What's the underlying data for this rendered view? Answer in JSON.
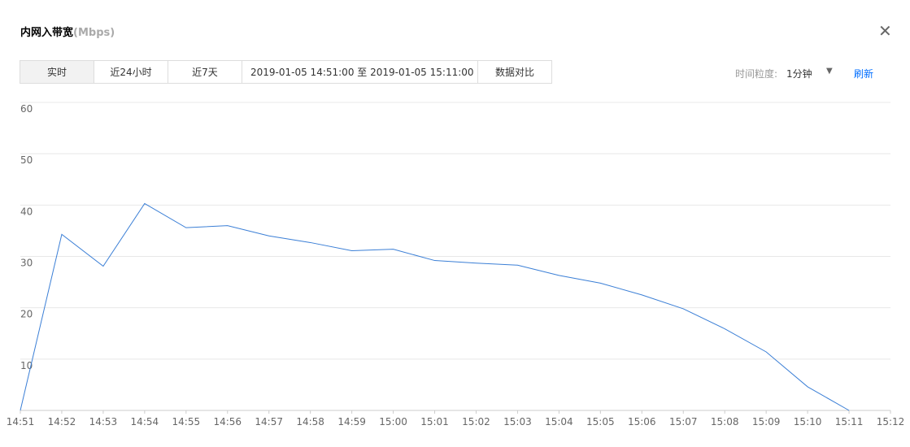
{
  "header": {
    "title": "内网入带宽",
    "unit": "(Mbps)"
  },
  "toolbar": {
    "tabs": [
      "实时",
      "近24小时",
      "近7天"
    ],
    "date_range": "2019-01-05 14:51:00 至 2019-01-05 15:11:00",
    "compare": "数据对比",
    "granularity_label": "时间粒度:",
    "granularity": "1分钟",
    "refresh": "刷新"
  },
  "chart_data": {
    "type": "line",
    "categories": [
      "14:51",
      "14:52",
      "14:53",
      "14:54",
      "14:55",
      "14:56",
      "14:57",
      "14:58",
      "14:59",
      "15:00",
      "15:01",
      "15:02",
      "15:03",
      "15:04",
      "15:05",
      "15:06",
      "15:07",
      "15:08",
      "15:09",
      "15:10",
      "15:11",
      "15:12"
    ],
    "values": [
      0,
      34.3,
      28.1,
      40.3,
      35.6,
      36.0,
      34.0,
      32.7,
      31.1,
      31.4,
      29.2,
      28.7,
      28.3,
      26.3,
      24.8,
      22.5,
      19.8,
      15.9,
      11.4,
      4.6,
      0,
      null
    ],
    "color": "#3b7fd6",
    "ylim": [
      0,
      60
    ],
    "yticks": [
      10,
      20,
      30,
      40,
      50,
      60
    ],
    "grid": true
  }
}
